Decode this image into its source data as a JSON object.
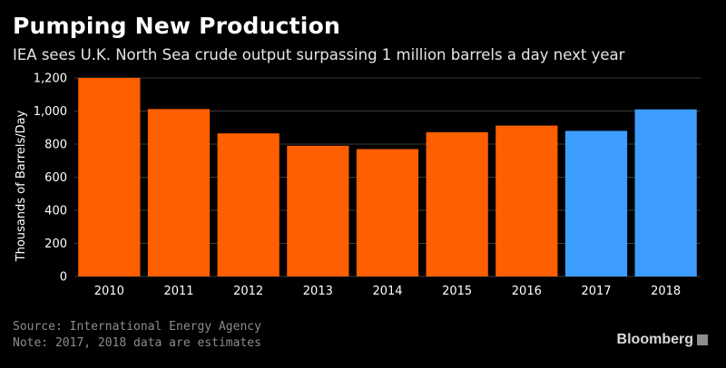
{
  "title": "Pumping New Production",
  "subtitle": "IEA sees U.K. North Sea crude output surpassing 1 million barrels a day next year",
  "footer": {
    "source": "Source: International Energy Agency",
    "note": "Note: 2017, 2018 data are estimates"
  },
  "brand": "Bloomberg",
  "brand_icon": "bloomberg-chart-icon",
  "colors": {
    "actual": "#ff5f00",
    "estimate": "#3d9dff",
    "background": "#000000",
    "grid": "#3a3a3a"
  },
  "chart_data": {
    "type": "bar",
    "categories": [
      "2010",
      "2011",
      "2012",
      "2013",
      "2014",
      "2015",
      "2016",
      "2017",
      "2018"
    ],
    "values": [
      1200,
      1012,
      865,
      790,
      770,
      872,
      912,
      880,
      1010
    ],
    "estimate": [
      false,
      false,
      false,
      false,
      false,
      false,
      false,
      true,
      true
    ],
    "ylabel": "Thousands of Barrels/Day",
    "ylim": [
      0,
      1200
    ],
    "yticks": [
      "0",
      "200",
      "400",
      "600",
      "800",
      "1,000",
      "1,200"
    ],
    "grid": true
  }
}
